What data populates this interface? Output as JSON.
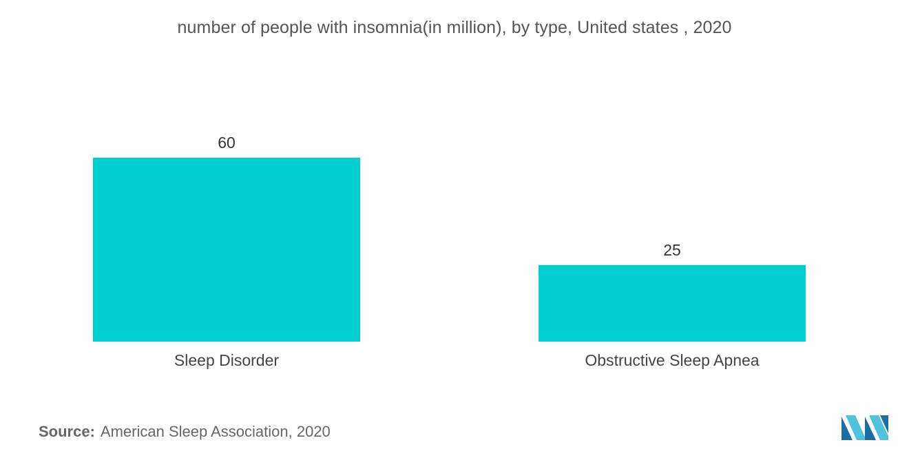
{
  "chart_data": {
    "type": "bar",
    "title": "number of people with insomnia(in million), by type, United states , 2020",
    "categories": [
      "Sleep Disorder",
      "Obstructive Sleep Apnea"
    ],
    "values": [
      60,
      25
    ],
    "data_labels": [
      "60",
      "25"
    ],
    "ylim": [
      0,
      60
    ],
    "grid": false,
    "bar_color": "#00CED1"
  },
  "source": {
    "prefix": "Source:",
    "text": "American Sleep Association, 2020"
  },
  "logo": {
    "icon": "mordor-intelligence-logo-icon",
    "colors": [
      "#1B6E9F",
      "#4FC3D9"
    ]
  }
}
